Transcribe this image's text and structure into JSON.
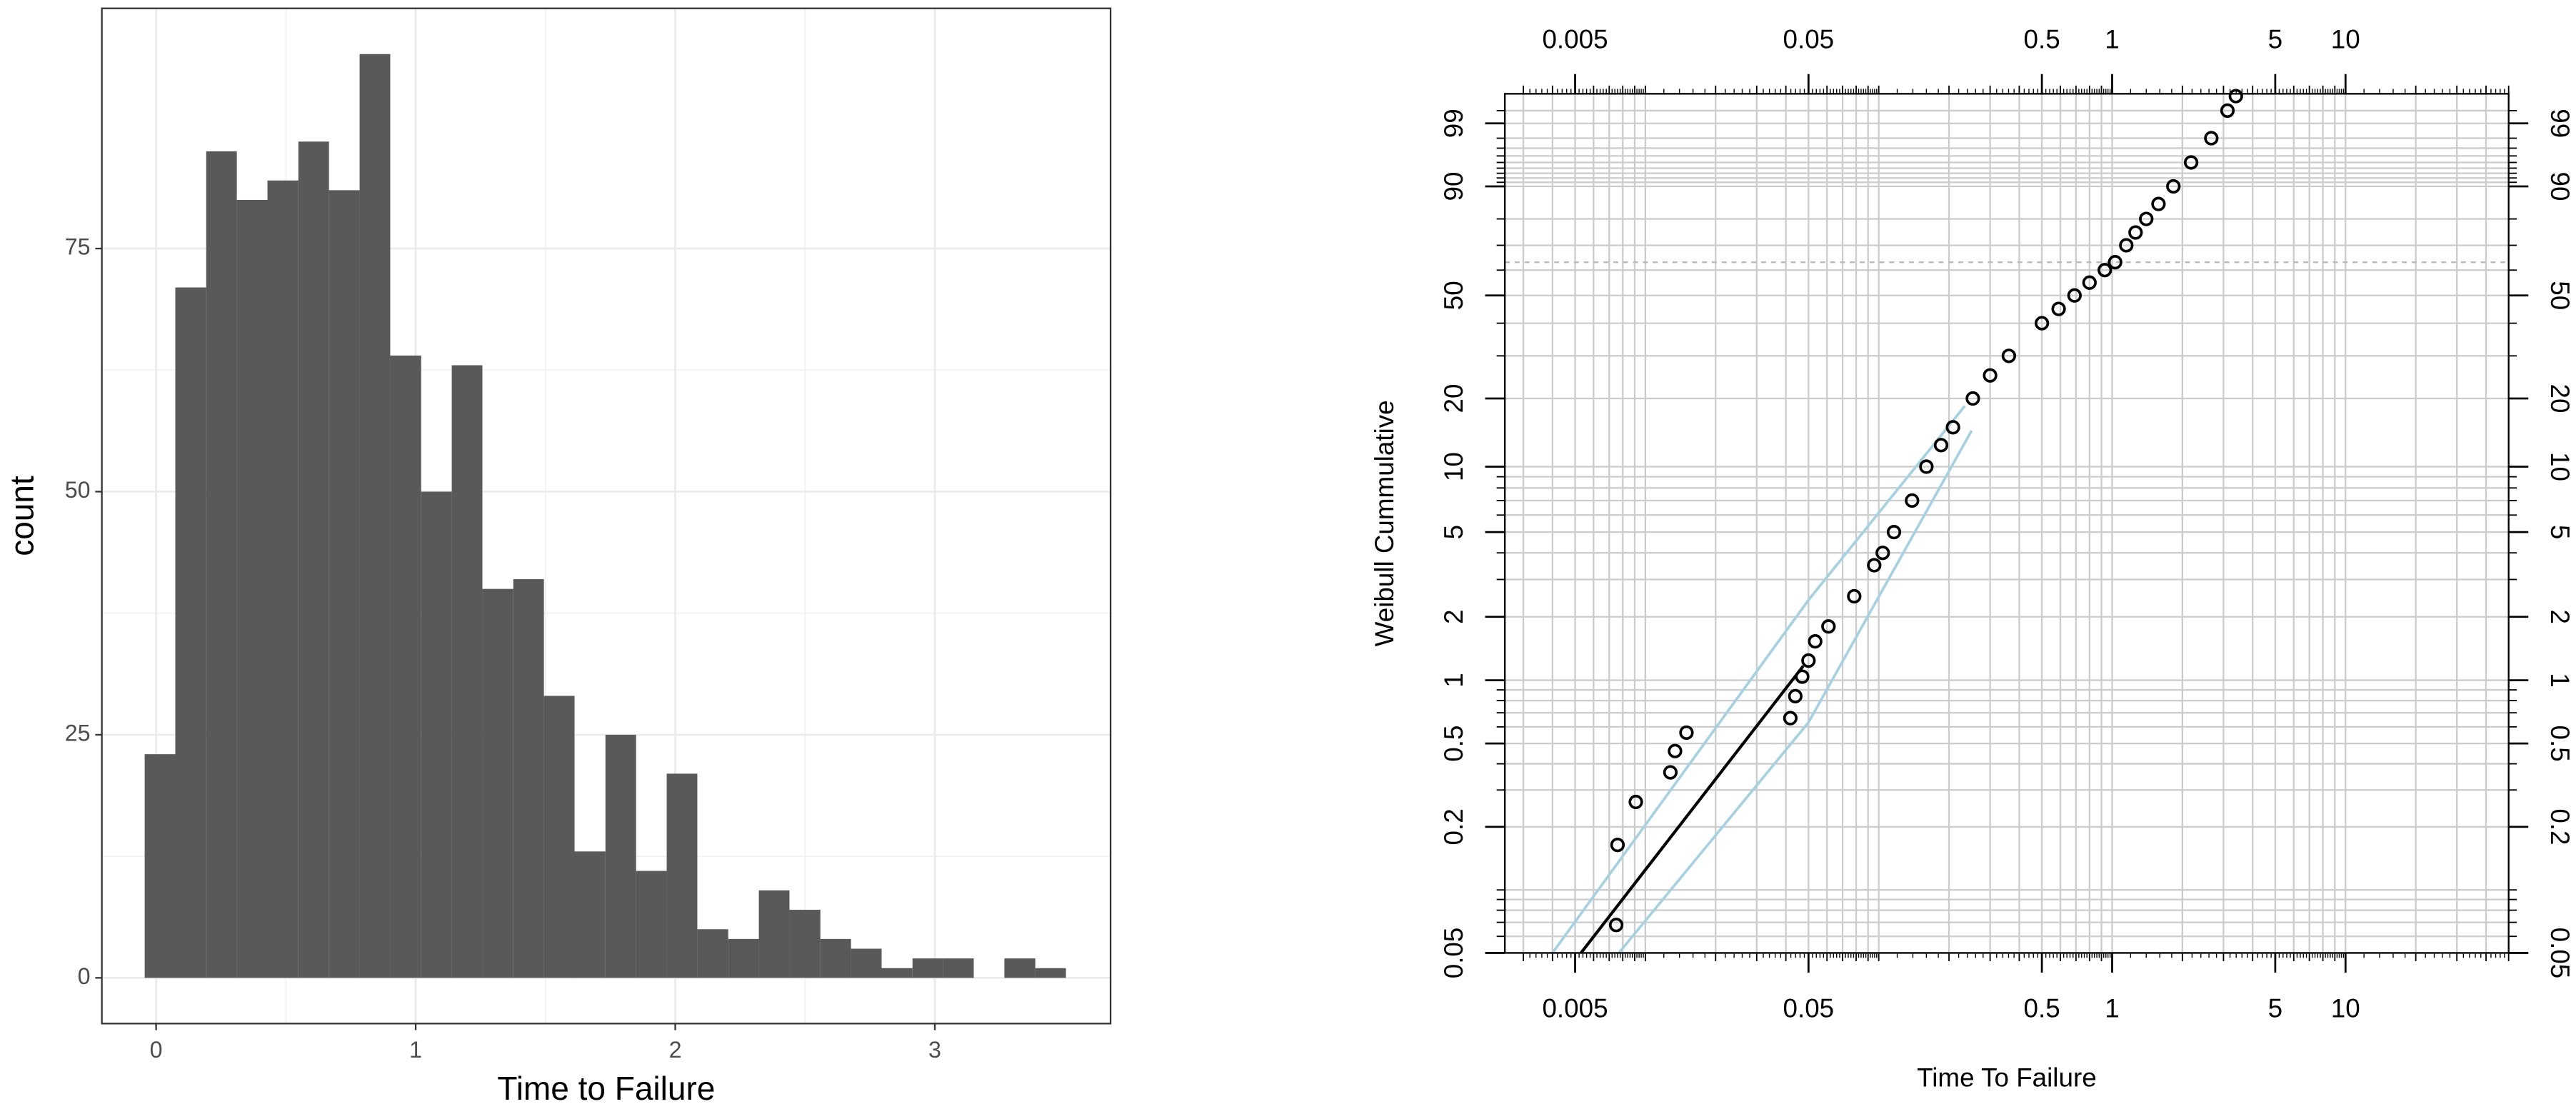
{
  "chart_data": [
    {
      "type": "histogram",
      "xlabel": "Time to Failure",
      "ylabel": "count",
      "bins": [
        -0.044,
        0.074,
        0.193,
        0.311,
        0.429,
        0.548,
        0.666,
        0.784,
        0.902,
        1.021,
        1.139,
        1.257,
        1.376,
        1.494,
        1.612,
        1.731,
        1.849,
        1.967,
        2.085,
        2.204,
        2.322,
        2.44,
        2.559,
        2.677,
        2.795,
        2.914,
        3.032,
        3.15,
        3.268,
        3.387,
        3.505
      ],
      "counts": [
        23,
        71,
        85,
        80,
        82,
        86,
        81,
        95,
        64,
        50,
        63,
        40,
        41,
        29,
        13,
        25,
        11,
        21,
        5,
        4,
        9,
        7,
        4,
        3,
        1,
        2,
        2,
        0,
        2,
        1
      ],
      "color": "#595959",
      "xlim": [
        -0.209,
        3.677
      ],
      "ylim": [
        -4.7,
        99.7
      ],
      "xticks": [
        0,
        1,
        2,
        3
      ],
      "yticks": [
        0,
        25,
        50,
        75
      ],
      "grid": true
    },
    {
      "type": "weibull",
      "xlabel": "Time To Failure",
      "ylabel": "Weibull Cummulative",
      "xscale": "log",
      "yscale": "weibull",
      "xlim": [
        0.0025,
        50
      ],
      "ylim": [
        0.05,
        99.83
      ],
      "xticks": [
        0.005,
        0.05,
        0.5,
        1,
        5,
        10
      ],
      "yticks": [
        0.05,
        0.2,
        0.5,
        1,
        2,
        5,
        10,
        20,
        50,
        90,
        99
      ],
      "grid": true,
      "ref_line": 63.2,
      "series": [
        {
          "style": "band",
          "color": "#a6d1e3",
          "x": [
            0.004,
            0.05,
            0.234
          ],
          "values": [
            0.05,
            2.4,
            18.6
          ]
        },
        {
          "style": "band",
          "color": "#a6d1e3",
          "x": [
            0.0077,
            0.05,
            0.25
          ],
          "values": [
            0.05,
            0.63,
            14.5
          ]
        },
        {
          "style": "line",
          "color": "#000000",
          "x": [
            0.0053,
            0.0475
          ],
          "values": [
            0.05,
            1.17
          ]
        },
        {
          "style": "points",
          "color": "#000000",
          "x": [
            0.0075,
            0.0076,
            0.0091,
            0.0128,
            0.0134,
            0.015,
            0.0418,
            0.0439,
            0.047,
            0.05,
            0.0534,
            0.0609,
            0.0785,
            0.0956,
            0.104,
            0.1162,
            0.1389,
            0.16,
            0.185,
            0.208,
            0.253,
            0.3,
            0.361,
            0.5,
            0.59,
            0.69,
            0.8,
            0.93,
            1.03,
            1.15,
            1.26,
            1.4,
            1.58,
            1.83,
            2.18,
            2.66,
            3.12,
            3.39
          ],
          "values": [
            0.068,
            0.164,
            0.263,
            0.364,
            0.46,
            0.563,
            0.66,
            0.84,
            1.04,
            1.24,
            1.53,
            1.8,
            2.5,
            3.5,
            4,
            5,
            7,
            10,
            12.5,
            15,
            20,
            25,
            30,
            40,
            45,
            50,
            55,
            60,
            63.2,
            70,
            75,
            80,
            85,
            90,
            95,
            98,
            99.5,
            99.8
          ]
        }
      ]
    }
  ]
}
